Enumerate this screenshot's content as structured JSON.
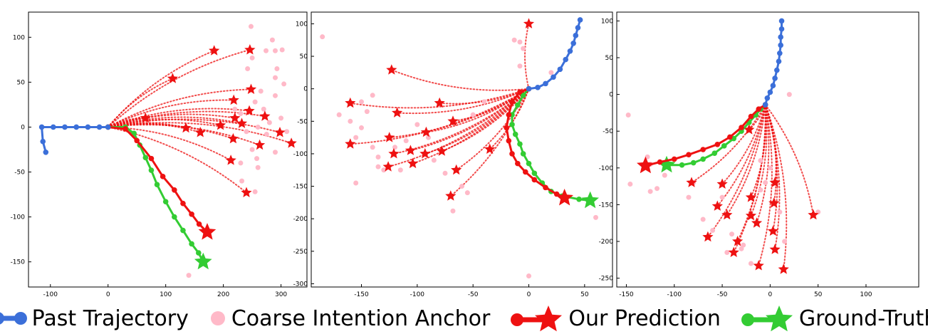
{
  "colors": {
    "past": "#3b6fd9",
    "anchor": "#ffb9c8",
    "prediction": "#ee1111",
    "ground_truth": "#33cc33"
  },
  "legend": {
    "past": "Past Trajectory",
    "anchor": "Coarse Intention Anchor",
    "prediction": "Our Prediction",
    "ground_truth": "Ground-Truth"
  },
  "chart_data": [
    {
      "type": "scatter",
      "xlim": [
        -138,
        345
      ],
      "ylim": [
        -178,
        128
      ],
      "xticks": [
        -100,
        0,
        100,
        200,
        300
      ],
      "yticks": [
        -150,
        -100,
        -50,
        0,
        50,
        100
      ],
      "past": [
        [
          -108,
          -28
        ],
        [
          -113,
          -16
        ],
        [
          -115,
          0
        ],
        [
          -95,
          0
        ],
        [
          -75,
          0
        ],
        [
          -55,
          0
        ],
        [
          -35,
          0
        ],
        [
          -15,
          0
        ],
        [
          0,
          0
        ]
      ],
      "ground_truth": [
        [
          0,
          0
        ],
        [
          30,
          0
        ],
        [
          45,
          -7
        ],
        [
          55,
          -20
        ],
        [
          65,
          -34
        ],
        [
          75,
          -48
        ],
        [
          85,
          -64
        ],
        [
          100,
          -83
        ],
        [
          115,
          -100
        ],
        [
          130,
          -115
        ],
        [
          145,
          -130
        ],
        [
          157,
          -140
        ],
        [
          165,
          -150
        ]
      ],
      "prediction": [
        [
          0,
          0
        ],
        [
          30,
          -2
        ],
        [
          50,
          -15
        ],
        [
          75,
          -35
        ],
        [
          95,
          -55
        ],
        [
          115,
          -70
        ],
        [
          130,
          -85
        ],
        [
          145,
          -97
        ],
        [
          158,
          -108
        ],
        [
          172,
          -117
        ]
      ],
      "stars": [
        [
          112,
          54
        ],
        [
          184,
          85
        ],
        [
          246,
          86
        ],
        [
          248,
          42
        ],
        [
          218,
          30
        ],
        [
          245,
          18
        ],
        [
          272,
          12
        ],
        [
          65,
          10
        ],
        [
          220,
          10
        ],
        [
          135,
          -1
        ],
        [
          195,
          2
        ],
        [
          232,
          4
        ],
        [
          298,
          -6
        ],
        [
          160,
          -6
        ],
        [
          217,
          -13
        ],
        [
          263,
          -20
        ],
        [
          318,
          -18
        ],
        [
          213,
          -37
        ],
        [
          240,
          -73
        ]
      ],
      "anchors": [
        [
          285,
          97
        ],
        [
          274,
          85
        ],
        [
          290,
          85
        ],
        [
          302,
          86
        ],
        [
          293,
          65
        ],
        [
          290,
          55
        ],
        [
          305,
          48
        ],
        [
          265,
          40
        ],
        [
          255,
          28
        ],
        [
          220,
          20
        ],
        [
          290,
          35
        ],
        [
          270,
          20
        ],
        [
          230,
          15
        ],
        [
          280,
          5
        ],
        [
          300,
          10
        ],
        [
          260,
          0
        ],
        [
          240,
          -5
        ],
        [
          310,
          -5
        ],
        [
          275,
          -8
        ],
        [
          250,
          -25
        ],
        [
          230,
          -40
        ],
        [
          260,
          -45
        ],
        [
          290,
          -28
        ],
        [
          248,
          112
        ],
        [
          250,
          77
        ],
        [
          242,
          65
        ],
        [
          258,
          -35
        ],
        [
          232,
          -60
        ],
        [
          255,
          -72
        ],
        [
          140,
          -165
        ]
      ]
    },
    {
      "type": "scatter",
      "xlim": [
        -195,
        75
      ],
      "ylim": [
        -305,
        118
      ],
      "xticks": [
        -150,
        -100,
        -50,
        0,
        50
      ],
      "yticks": [
        -300,
        -250,
        -200,
        -150,
        -100,
        -50,
        0,
        50,
        100
      ],
      "past": [
        [
          0,
          0
        ],
        [
          8,
          2
        ],
        [
          15,
          8
        ],
        [
          22,
          18
        ],
        [
          28,
          30
        ],
        [
          33,
          45
        ],
        [
          37,
          58
        ],
        [
          40,
          70
        ],
        [
          42,
          82
        ],
        [
          44,
          94
        ],
        [
          46,
          106
        ]
      ],
      "ground_truth": [
        [
          0,
          0
        ],
        [
          -5,
          -10
        ],
        [
          -10,
          -25
        ],
        [
          -15,
          -40
        ],
        [
          -15,
          -55
        ],
        [
          -12,
          -70
        ],
        [
          -8,
          -85
        ],
        [
          -5,
          -100
        ],
        [
          0,
          -115
        ],
        [
          5,
          -130
        ],
        [
          12,
          -145
        ],
        [
          20,
          -158
        ],
        [
          30,
          -165
        ],
        [
          45,
          -170
        ],
        [
          55,
          -172
        ]
      ],
      "prediction": [
        [
          0,
          0
        ],
        [
          -8,
          -5
        ],
        [
          -15,
          -20
        ],
        [
          -18,
          -40
        ],
        [
          -20,
          -60
        ],
        [
          -18,
          -80
        ],
        [
          -15,
          -100
        ],
        [
          -10,
          -115
        ],
        [
          -3,
          -128
        ],
        [
          5,
          -140
        ],
        [
          15,
          -152
        ],
        [
          25,
          -162
        ],
        [
          32,
          -168
        ]
      ],
      "stars": [
        [
          0,
          100
        ],
        [
          -123,
          29
        ],
        [
          -160,
          -22
        ],
        [
          -80,
          -22
        ],
        [
          -118,
          -37
        ],
        [
          -68,
          -50
        ],
        [
          -125,
          -75
        ],
        [
          -92,
          -67
        ],
        [
          -160,
          -85
        ],
        [
          -35,
          -93
        ],
        [
          -106,
          -95
        ],
        [
          -121,
          -100
        ],
        [
          -78,
          -96
        ],
        [
          -93,
          -100
        ],
        [
          -104,
          -115
        ],
        [
          -126,
          -120
        ],
        [
          -65,
          -125
        ],
        [
          -70,
          -165
        ]
      ],
      "anchors": [
        [
          -185,
          80
        ],
        [
          -13,
          75
        ],
        [
          -8,
          72
        ],
        [
          -5,
          62
        ],
        [
          -8,
          35
        ],
        [
          20,
          25
        ],
        [
          -140,
          -10
        ],
        [
          -150,
          -20
        ],
        [
          -145,
          -35
        ],
        [
          -170,
          -40
        ],
        [
          -160,
          -50
        ],
        [
          -150,
          -60
        ],
        [
          -155,
          -75
        ],
        [
          -140,
          -90
        ],
        [
          -135,
          -105
        ],
        [
          -130,
          -125
        ],
        [
          -155,
          -145
        ],
        [
          -100,
          -55
        ],
        [
          -90,
          -75
        ],
        [
          -110,
          -80
        ],
        [
          -120,
          -90
        ],
        [
          -85,
          -110
        ],
        [
          -75,
          -130
        ],
        [
          -60,
          -150
        ],
        [
          -55,
          -160
        ],
        [
          -68,
          -188
        ],
        [
          -135,
          -120
        ],
        [
          -115,
          -125
        ],
        [
          60,
          -198
        ],
        [
          0,
          -288
        ],
        [
          -40,
          -20
        ],
        [
          -50,
          -40
        ]
      ]
    },
    {
      "type": "scatter",
      "xlim": [
        -160,
        155
      ],
      "ylim": [
        -262,
        112
      ],
      "xticks": [
        -150,
        -100,
        -50,
        0,
        50,
        100
      ],
      "yticks": [
        -250,
        -200,
        -150,
        -100,
        -50,
        0,
        50,
        100
      ],
      "past": [
        [
          -5,
          -14
        ],
        [
          -3,
          -5
        ],
        [
          0,
          3
        ],
        [
          3,
          12
        ],
        [
          5,
          22
        ],
        [
          7,
          33
        ],
        [
          9,
          45
        ],
        [
          10,
          56
        ],
        [
          11,
          67
        ],
        [
          11,
          78
        ],
        [
          12,
          89
        ],
        [
          12,
          100
        ]
      ],
      "ground_truth": [
        [
          -5,
          -14
        ],
        [
          -10,
          -20
        ],
        [
          -15,
          -28
        ],
        [
          -22,
          -38
        ],
        [
          -30,
          -50
        ],
        [
          -38,
          -60
        ],
        [
          -48,
          -70
        ],
        [
          -58,
          -80
        ],
        [
          -70,
          -88
        ],
        [
          -80,
          -93
        ],
        [
          -92,
          -96
        ],
        [
          -108,
          -96
        ]
      ],
      "prediction": [
        [
          -5,
          -14
        ],
        [
          -12,
          -20
        ],
        [
          -20,
          -30
        ],
        [
          -30,
          -45
        ],
        [
          -42,
          -58
        ],
        [
          -55,
          -68
        ],
        [
          -70,
          -75
        ],
        [
          -85,
          -82
        ],
        [
          -100,
          -88
        ],
        [
          -115,
          -92
        ],
        [
          -130,
          -97
        ]
      ],
      "stars": [
        [
          -22,
          -48
        ],
        [
          -82,
          -120
        ],
        [
          -50,
          -122
        ],
        [
          5,
          -120
        ],
        [
          -20,
          -140
        ],
        [
          -55,
          -152
        ],
        [
          4,
          -148
        ],
        [
          -45,
          -164
        ],
        [
          -20,
          -165
        ],
        [
          45,
          -164
        ],
        [
          -14,
          -175
        ],
        [
          3,
          -186
        ],
        [
          -65,
          -194
        ],
        [
          -34,
          -200
        ],
        [
          -38,
          -215
        ],
        [
          5,
          -211
        ],
        [
          -12,
          -233
        ],
        [
          14,
          -238
        ]
      ],
      "anchors": [
        [
          -148,
          -28
        ],
        [
          -146,
          -122
        ],
        [
          -128,
          -85
        ],
        [
          -125,
          -95
        ],
        [
          -118,
          -128
        ],
        [
          -125,
          -132
        ],
        [
          -110,
          -110
        ],
        [
          -85,
          -140
        ],
        [
          -80,
          -120
        ],
        [
          -70,
          -170
        ],
        [
          -60,
          -185
        ],
        [
          -40,
          -190
        ],
        [
          -30,
          -210
        ],
        [
          -20,
          -230
        ],
        [
          20,
          0
        ],
        [
          0,
          -100
        ],
        [
          -5,
          -120
        ],
        [
          -10,
          -130
        ],
        [
          10,
          -160
        ],
        [
          15,
          -200
        ],
        [
          -50,
          -140
        ],
        [
          50,
          -160
        ],
        [
          -45,
          -215
        ],
        [
          -28,
          -205
        ],
        [
          -10,
          -90
        ]
      ]
    }
  ]
}
